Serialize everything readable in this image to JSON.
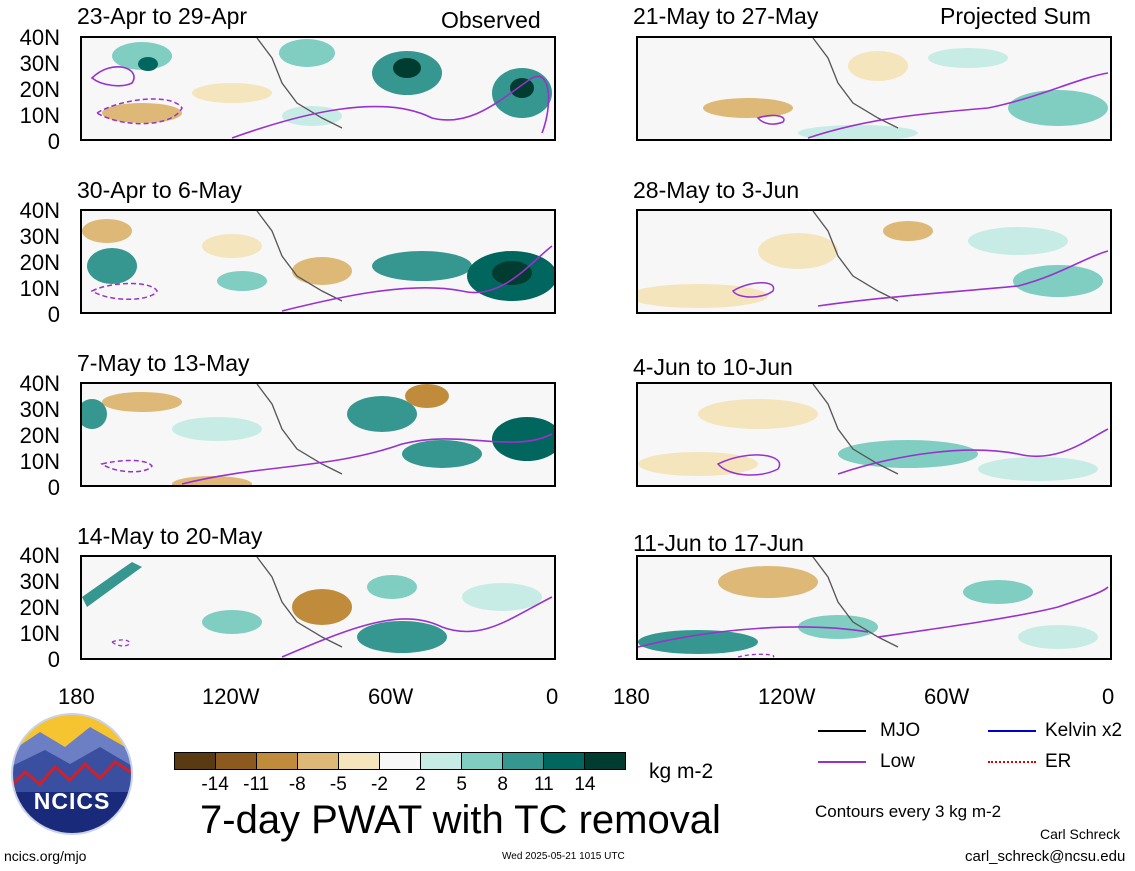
{
  "header": {
    "left_label": "Observed",
    "right_label": "Projected Sum"
  },
  "panels": [
    {
      "title": "23-Apr to 29-Apr"
    },
    {
      "title": "30-Apr to 6-May"
    },
    {
      "title": "7-May to 13-May"
    },
    {
      "title": "14-May to 20-May"
    },
    {
      "title": "21-May to 27-May"
    },
    {
      "title": "28-May to 3-Jun"
    },
    {
      "title": "4-Jun to 10-Jun"
    },
    {
      "title": "11-Jun to 17-Jun"
    }
  ],
  "axes": {
    "y_ticks": [
      "40N",
      "30N",
      "20N",
      "10N",
      "0"
    ],
    "x_ticks": [
      "180",
      "120W",
      "60W",
      "0"
    ]
  },
  "colorbar": {
    "labels": [
      "-14",
      "-11",
      "-8",
      "-5",
      "-2",
      "2",
      "5",
      "8",
      "11",
      "14"
    ],
    "colors": [
      "#5a3a12",
      "#8c5a1e",
      "#c08c3c",
      "#ddb877",
      "#f5e5bd",
      "#f7f7f7",
      "#c7ece6",
      "#80cdc1",
      "#35978f",
      "#01665e",
      "#003c30"
    ],
    "units": "kg m-2"
  },
  "title": "7-day PWAT with TC removal",
  "legend": {
    "items": [
      {
        "label": "MJO",
        "color": "#000000"
      },
      {
        "label": "Kelvin x2",
        "color": "#0000cc"
      },
      {
        "label": "Low",
        "color": "#9932cc"
      },
      {
        "label": "ER",
        "color": "#dd0000"
      }
    ],
    "note": "Contours every 3 kg m-2"
  },
  "footer": {
    "url": "ncics.org/mjo",
    "timestamp": "Wed 2025-05-21 1015 UTC",
    "author": "Carl Schreck",
    "email": "carl_schreck@ncsu.edu",
    "logo_text": "NCICS"
  },
  "chart_data": {
    "type": "heatmap",
    "description_fields": "8 map panels of 7-day precipitable water anomaly",
    "variable": "7-day PWAT with TC removal",
    "units": "kg m-2",
    "lon_range": [
      "180",
      "0"
    ],
    "lat_range": [
      "0",
      "40N"
    ],
    "color_levels": [
      -14,
      -11,
      -8,
      -5,
      -2,
      2,
      5,
      8,
      11,
      14
    ],
    "contour_interval": "3 kg m-2",
    "contour_types": [
      "MJO",
      "Kelvin x2",
      "Low",
      "ER"
    ],
    "panels_observed": [
      "23-Apr to 29-Apr",
      "30-Apr to 6-May",
      "7-May to 13-May",
      "14-May to 20-May"
    ],
    "panels_projected": [
      "21-May to 27-May",
      "28-May to 3-Jun",
      "4-Jun to 10-Jun",
      "11-Jun to 17-Jun"
    ]
  }
}
